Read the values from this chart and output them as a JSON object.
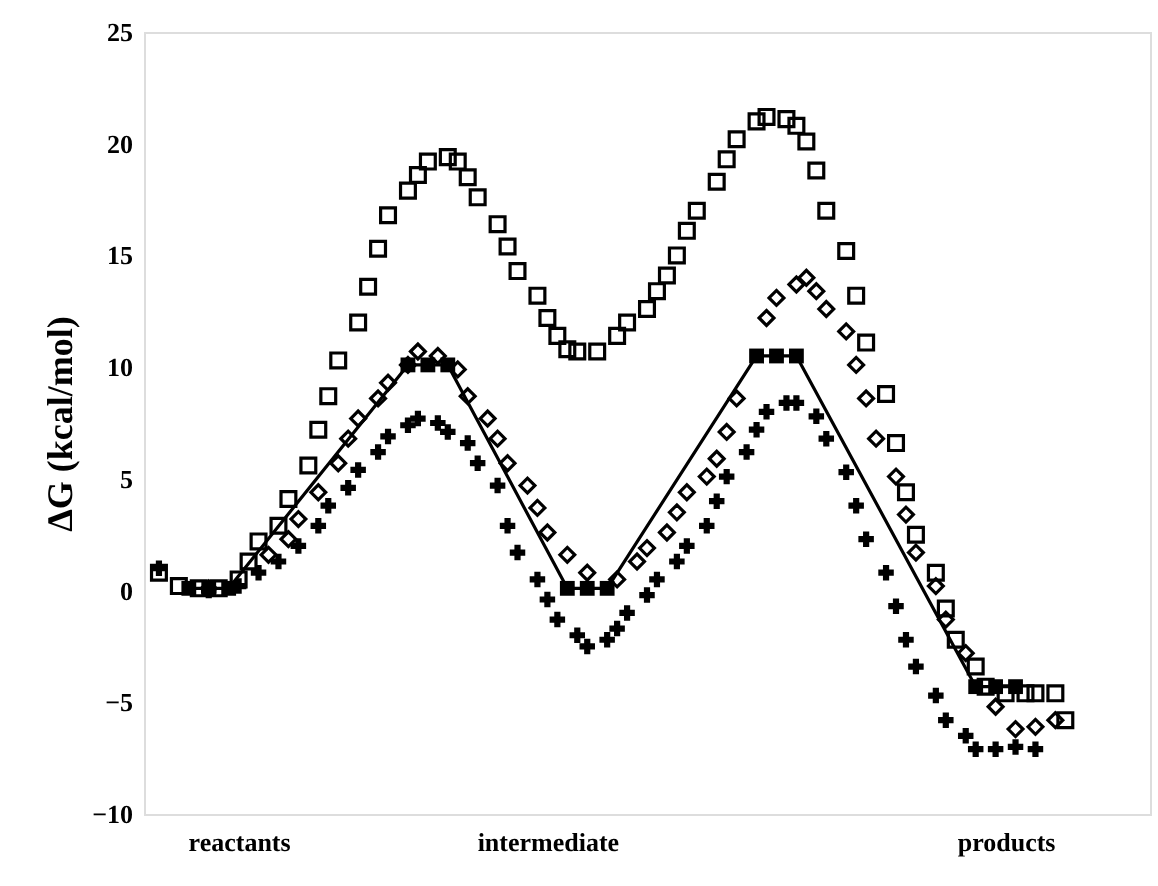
{
  "chart_data": {
    "type": "scatter",
    "ylabel": "ΔG (kcal/mol)",
    "categories": [
      null,
      null,
      null,
      null,
      null,
      null,
      null,
      null,
      null,
      "reactants",
      null,
      null,
      null,
      null,
      null,
      null,
      null,
      null,
      null,
      null,
      null,
      null,
      null,
      null,
      null,
      null,
      null,
      null,
      null,
      null,
      null,
      null,
      null,
      null,
      null,
      null,
      null,
      null,
      null,
      null,
      "intermediate",
      null,
      null,
      null,
      null,
      null,
      null,
      null,
      null,
      null,
      null,
      null,
      null,
      null,
      null,
      null,
      null,
      null,
      null,
      null,
      null,
      null,
      null,
      null,
      null,
      null,
      null,
      null,
      null,
      null,
      null,
      null,
      null,
      null,
      null,
      null,
      null,
      null,
      null,
      null,
      null,
      null,
      null,
      null,
      null,
      null,
      "products",
      null,
      null,
      null,
      null,
      null,
      null,
      null,
      null,
      null,
      null,
      null,
      null,
      null,
      null
    ],
    "ylim": [
      -10,
      25
    ],
    "yticks": [
      -10,
      -5,
      0,
      5,
      10,
      15,
      20,
      25
    ],
    "grid": false,
    "series": [
      {
        "marker": "square",
        "color": "#000000",
        "values": [
          null,
          0.8,
          null,
          0.2,
          null,
          0.1,
          null,
          0.1,
          null,
          0.5,
          1.3,
          2.2,
          null,
          2.9,
          4.1,
          null,
          5.6,
          7.2,
          8.7,
          10.3,
          null,
          12.0,
          13.6,
          15.3,
          16.8,
          null,
          17.9,
          18.6,
          19.2,
          null,
          19.4,
          19.2,
          18.5,
          17.6,
          null,
          16.4,
          15.4,
          14.3,
          null,
          13.2,
          12.2,
          11.4,
          10.8,
          10.7,
          null,
          10.7,
          null,
          11.4,
          12.0,
          null,
          12.6,
          13.4,
          14.1,
          15.0,
          16.1,
          17.0,
          null,
          18.3,
          19.3,
          20.2,
          null,
          21.0,
          21.2,
          null,
          21.1,
          20.8,
          20.1,
          18.8,
          17.0,
          null,
          15.2,
          13.2,
          11.1,
          null,
          8.8,
          6.6,
          4.4,
          2.5,
          null,
          0.8,
          -0.8,
          -2.2,
          null,
          -3.4,
          -4.3,
          null,
          -4.6,
          null,
          -4.6,
          -4.6,
          null,
          -4.6,
          -5.8,
          null,
          null,
          null,
          null,
          null,
          null,
          null,
          null
        ]
      },
      {
        "marker": "diamond",
        "color": "#000000",
        "values": [
          null,
          null,
          null,
          null,
          null,
          null,
          0.1,
          null,
          null,
          null,
          null,
          null,
          1.6,
          null,
          2.3,
          3.2,
          null,
          4.4,
          null,
          5.7,
          6.8,
          7.7,
          null,
          8.6,
          9.3,
          null,
          10.1,
          10.7,
          null,
          10.5,
          null,
          9.9,
          8.7,
          null,
          7.7,
          6.8,
          5.7,
          null,
          4.7,
          3.7,
          2.6,
          null,
          1.6,
          null,
          0.8,
          null,
          null,
          0.5,
          null,
          1.3,
          1.9,
          null,
          2.6,
          3.5,
          4.4,
          null,
          5.1,
          5.9,
          7.1,
          8.6,
          null,
          null,
          12.2,
          13.1,
          null,
          13.7,
          14.0,
          13.4,
          12.6,
          null,
          11.6,
          10.1,
          8.6,
          6.8,
          null,
          5.1,
          3.4,
          1.7,
          null,
          0.2,
          -1.3,
          null,
          -2.8,
          null,
          null,
          -5.2,
          null,
          -6.2,
          null,
          -6.1,
          null,
          -5.8,
          null,
          null,
          null,
          null,
          null,
          null,
          null,
          null,
          null
        ]
      },
      {
        "marker": "cross",
        "color": "#000000",
        "values": [
          null,
          1.0,
          null,
          null,
          null,
          null,
          0.0,
          null,
          null,
          0.2,
          null,
          0.8,
          null,
          1.3,
          null,
          2.0,
          null,
          2.9,
          3.8,
          null,
          4.6,
          5.4,
          null,
          6.2,
          6.9,
          null,
          7.4,
          7.7,
          null,
          7.5,
          7.1,
          null,
          6.6,
          5.7,
          null,
          4.7,
          2.9,
          1.7,
          null,
          0.5,
          -0.4,
          -1.3,
          null,
          -2.0,
          -2.5,
          null,
          -2.2,
          -1.7,
          -1.0,
          null,
          -0.2,
          0.5,
          null,
          1.3,
          2.0,
          null,
          2.9,
          4.0,
          5.1,
          null,
          6.2,
          7.2,
          8.0,
          null,
          8.4,
          8.4,
          null,
          7.8,
          6.8,
          null,
          5.3,
          3.8,
          2.3,
          null,
          0.8,
          -0.7,
          -2.2,
          -3.4,
          null,
          -4.7,
          -5.8,
          null,
          -6.5,
          -7.1,
          null,
          -7.1,
          null,
          -7.0,
          null,
          -7.1,
          null,
          null,
          null,
          null,
          null,
          null,
          null,
          null,
          null,
          null,
          null
        ]
      },
      {
        "type": "line",
        "marker": "square",
        "line_style": "solid",
        "color": "#000000",
        "values": [
          null,
          null,
          null,
          null,
          0.1,
          null,
          0.1,
          null,
          0.1,
          null,
          null,
          null,
          null,
          null,
          null,
          null,
          null,
          null,
          null,
          null,
          null,
          null,
          null,
          null,
          null,
          null,
          10.1,
          null,
          10.1,
          null,
          10.1,
          null,
          null,
          null,
          null,
          null,
          null,
          null,
          null,
          null,
          null,
          null,
          0.1,
          null,
          0.1,
          null,
          0.1,
          null,
          null,
          null,
          null,
          null,
          null,
          null,
          null,
          null,
          null,
          null,
          null,
          null,
          null,
          10.5,
          null,
          10.5,
          null,
          10.5,
          null,
          null,
          null,
          null,
          null,
          null,
          null,
          null,
          null,
          null,
          null,
          null,
          null,
          null,
          null,
          null,
          null,
          -4.3,
          null,
          -4.3,
          null,
          -4.3,
          null,
          null,
          null,
          null,
          null,
          null,
          null,
          null,
          null,
          null,
          null,
          null,
          null
        ]
      }
    ]
  }
}
